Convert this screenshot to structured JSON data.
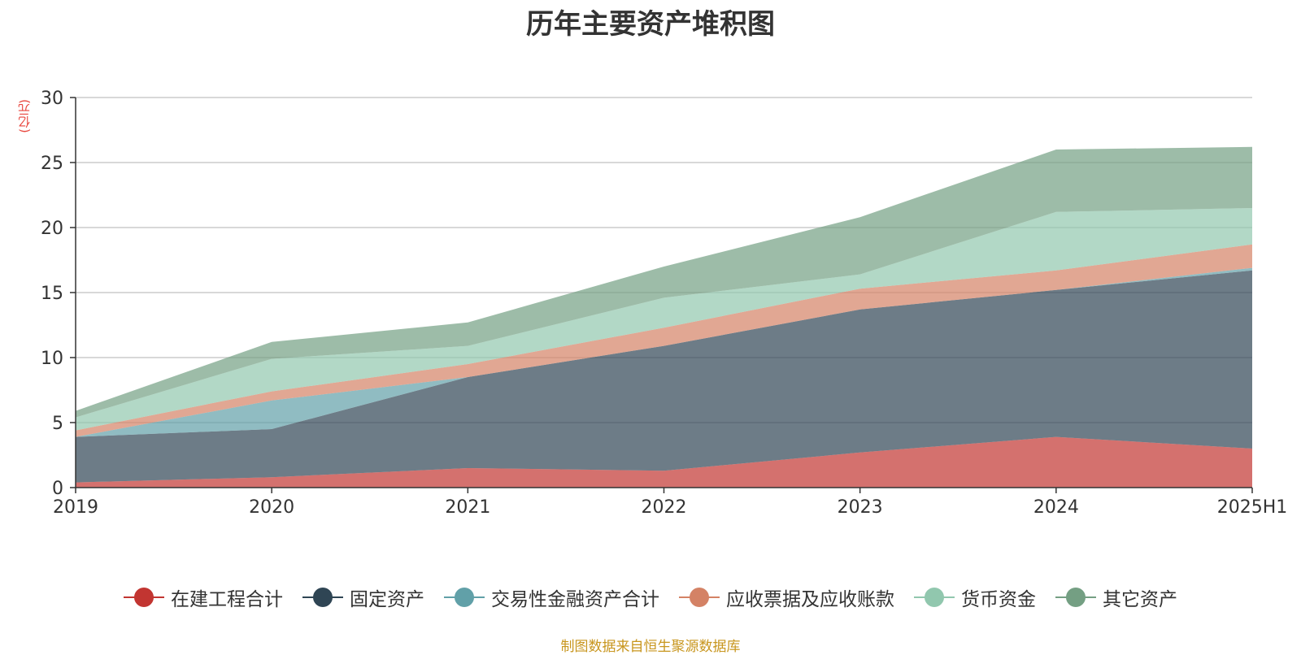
{
  "page": {
    "title": "历年主要资产堆积图",
    "unit": "(亿元)",
    "source": "制图数据来自恒生聚源数据库"
  },
  "chart_data": {
    "type": "area",
    "stacked": true,
    "title": "历年主要资产堆积图",
    "xlabel": "",
    "ylabel": "(亿元)",
    "categories": [
      "2019",
      "2020",
      "2021",
      "2022",
      "2023",
      "2024",
      "2025H1"
    ],
    "ylim": [
      0,
      30
    ],
    "yticks": [
      0,
      5,
      10,
      15,
      20,
      25,
      30
    ],
    "grid": true,
    "legend_position": "bottom",
    "series": [
      {
        "name": "在建工程合计",
        "color": "#c23531",
        "values": [
          0.4,
          0.8,
          1.5,
          1.3,
          2.7,
          3.9,
          3.0
        ]
      },
      {
        "name": "固定资产",
        "color": "#2f4554",
        "values": [
          3.5,
          3.7,
          7.0,
          9.6,
          11.0,
          11.3,
          13.7
        ]
      },
      {
        "name": "交易性金融资产合计",
        "color": "#61a0a8",
        "values": [
          0.0,
          2.2,
          0.0,
          0.0,
          0.0,
          0.0,
          0.2
        ]
      },
      {
        "name": "应收票据及应收账款",
        "color": "#d48265",
        "values": [
          0.5,
          0.7,
          1.0,
          1.4,
          1.6,
          1.5,
          1.8
        ]
      },
      {
        "name": "货币资金",
        "color": "#91c7ae",
        "values": [
          1.0,
          2.5,
          1.4,
          2.3,
          1.1,
          4.5,
          2.8
        ]
      },
      {
        "name": "其它资产",
        "color": "#749f83",
        "values": [
          0.5,
          1.3,
          1.8,
          2.4,
          4.4,
          4.8,
          4.7
        ]
      }
    ]
  }
}
